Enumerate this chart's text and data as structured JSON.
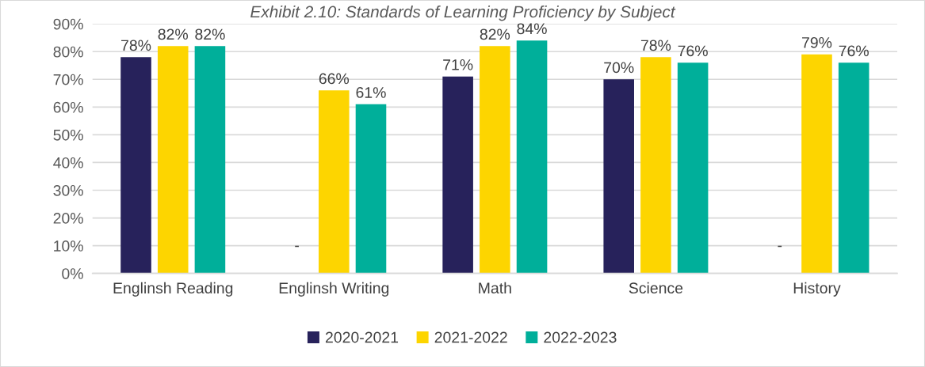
{
  "chart_data": {
    "type": "bar",
    "title": "Exhibit 2.10: Standards of Learning Proficiency by Subject",
    "categories": [
      "Englinsh Reading",
      "Englinsh Writing",
      "Math",
      "Science",
      "History"
    ],
    "series": [
      {
        "name": "2020-2021",
        "color": "#27225b",
        "values": [
          78,
          null,
          71,
          70,
          null
        ],
        "value_labels": [
          "78%",
          "-",
          "71%",
          "70%",
          "-"
        ]
      },
      {
        "name": "2021-2022",
        "color": "#fdd500",
        "values": [
          82,
          66,
          82,
          78,
          79
        ],
        "value_labels": [
          "82%",
          "66%",
          "82%",
          "78%",
          "79%"
        ]
      },
      {
        "name": "2022-2023",
        "color": "#00af9a",
        "values": [
          82,
          61,
          84,
          76,
          76
        ],
        "value_labels": [
          "82%",
          "61%",
          "84%",
          "76%",
          "76%"
        ]
      }
    ],
    "ylim": [
      0,
      90
    ],
    "yticks": [
      {
        "value": 0,
        "label": "0%"
      },
      {
        "value": 10,
        "label": "10%"
      },
      {
        "value": 20,
        "label": "20%"
      },
      {
        "value": 30,
        "label": "30%"
      },
      {
        "value": 40,
        "label": "40%"
      },
      {
        "value": 50,
        "label": "50%"
      },
      {
        "value": 60,
        "label": "60%"
      },
      {
        "value": 70,
        "label": "70%"
      },
      {
        "value": 80,
        "label": "80%"
      },
      {
        "value": 90,
        "label": "90%"
      }
    ],
    "grid": "y",
    "legend": "bottom"
  }
}
